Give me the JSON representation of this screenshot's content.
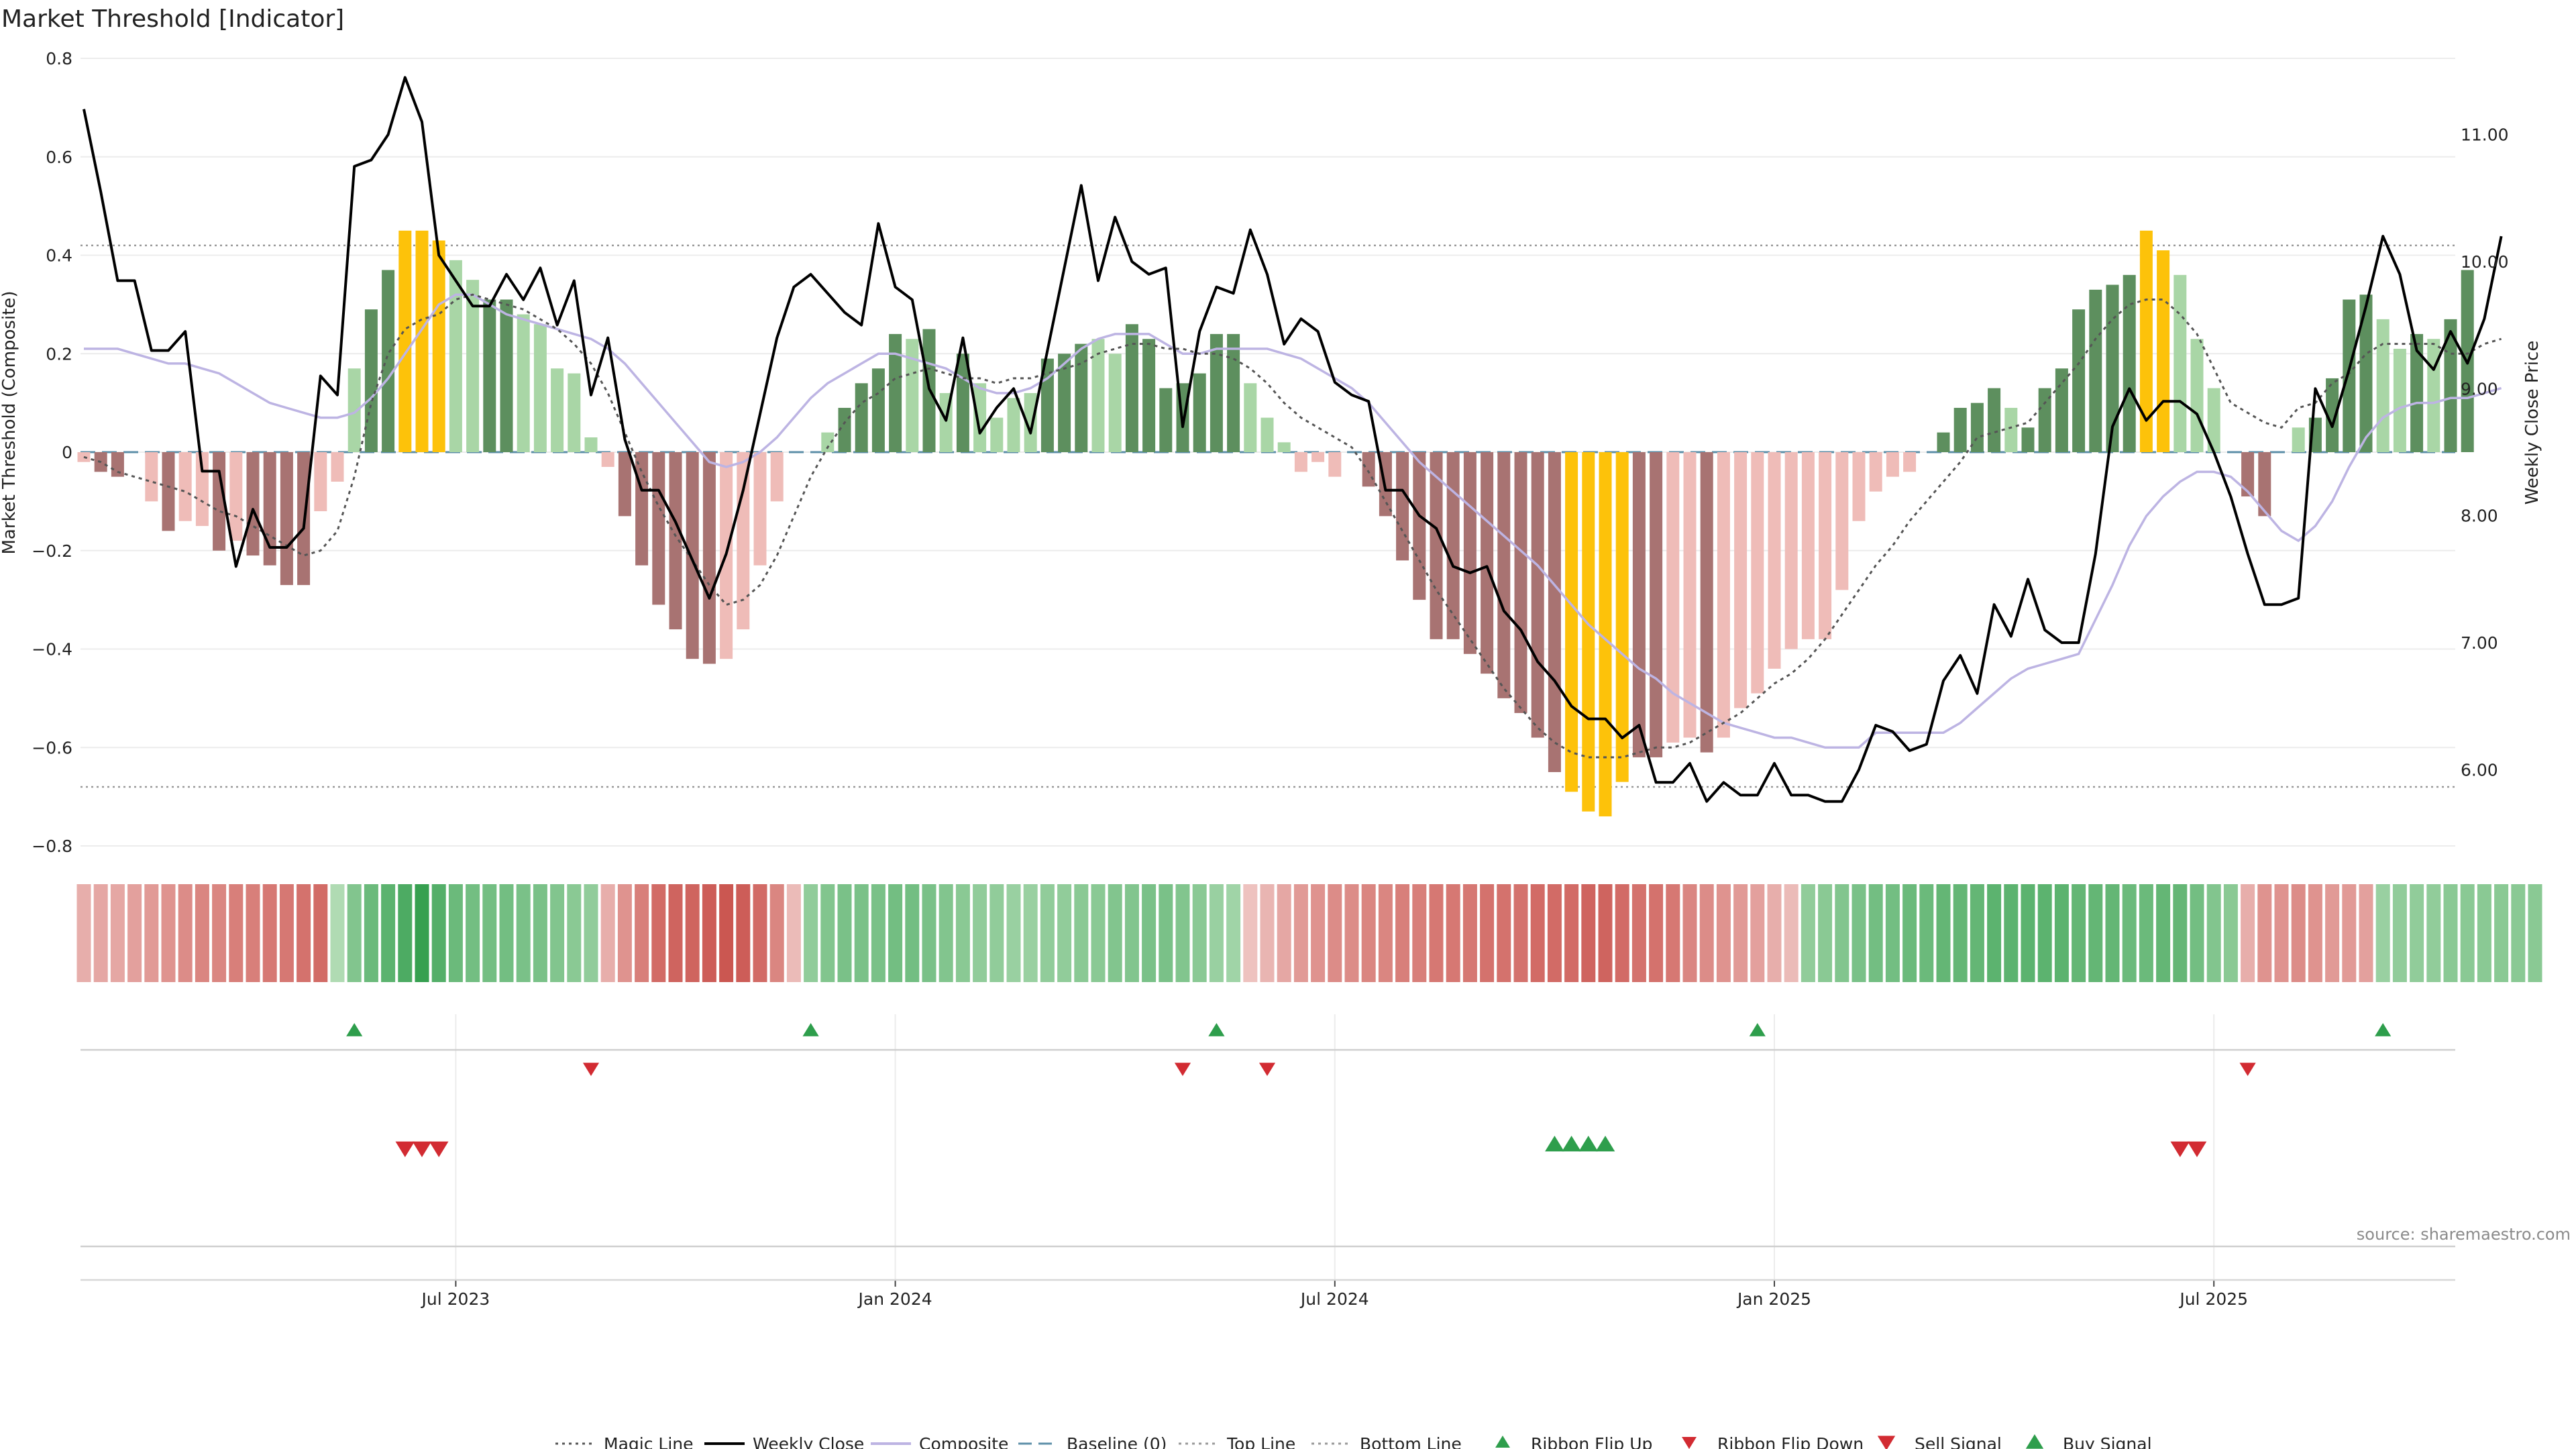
{
  "title": "Market Threshold [Indicator]",
  "source": "source: sharemaestro.com",
  "colors": {
    "dark_green": "#5d8f5e",
    "light_green": "#a9d6a6",
    "dark_red": "#a87372",
    "light_red": "#efbcb8",
    "yellow": "#fdc20a",
    "close_line": "#000000",
    "composite_line": "#bdb4e3",
    "magic_line": "#555555",
    "baseline": "#5d8fa8",
    "flip_up": "#2e9e4c",
    "flip_down": "#d22b32"
  },
  "legend": [
    {
      "label": "Magic Line",
      "kind": "dotted",
      "color": "#555555"
    },
    {
      "label": "Weekly Close",
      "kind": "solid",
      "color": "#000000"
    },
    {
      "label": "Composite",
      "kind": "lavender",
      "color": "#bdb4e3"
    },
    {
      "label": "Baseline (0)",
      "kind": "dashed",
      "color": "#5d8fa8"
    },
    {
      "label": "Top Line",
      "kind": "dotted-thin",
      "color": "#999999"
    },
    {
      "label": "Bottom Line",
      "kind": "dotted-thin",
      "color": "#999999"
    },
    {
      "label": "Ribbon Flip Up",
      "kind": "tri-up",
      "color": "#2e9e4c"
    },
    {
      "label": "Ribbon Flip Down",
      "kind": "tri-down",
      "color": "#d22b32"
    },
    {
      "label": "Sell Signal",
      "kind": "tri-down-big",
      "color": "#d22b32"
    },
    {
      "label": "Buy Signal",
      "kind": "tri-up-big",
      "color": "#2e9e4c"
    }
  ],
  "chart_data": {
    "type": "bar",
    "ylabel": "Market Threshold (Composite)",
    "y2label": "Weekly Close Price",
    "ylim": [
      -0.8,
      0.8
    ],
    "y2lim": [
      5.4,
      11.6
    ],
    "yticks": [
      "0.8",
      "0.6",
      "0.4",
      "0.2",
      "0",
      "−0.2",
      "−0.4",
      "−0.6",
      "−0.8"
    ],
    "y2ticks": [
      "11.00",
      "10.00",
      "9.00",
      "8.00",
      "7.00",
      "6.00"
    ],
    "x_ticks": [
      {
        "label": "Jul 2023",
        "index": 22
      },
      {
        "label": "Jan 2024",
        "index": 48
      },
      {
        "label": "Jul 2024",
        "index": 74
      },
      {
        "label": "Jan 2025",
        "index": 100
      },
      {
        "label": "Jul 2025",
        "index": 126
      }
    ],
    "top_line": 0.42,
    "bottom_line": -0.68,
    "composite_bars": [
      -0.02,
      -0.04,
      -0.05,
      0,
      -0.1,
      -0.16,
      -0.14,
      -0.15,
      -0.2,
      -0.18,
      -0.21,
      -0.23,
      -0.27,
      -0.27,
      -0.12,
      -0.06,
      0.17,
      0.29,
      0.37,
      0.45,
      0.45,
      0.43,
      0.39,
      0.35,
      0.31,
      0.31,
      0.28,
      0.26,
      0.17,
      0.16,
      0.03,
      -0.03,
      -0.13,
      -0.23,
      -0.31,
      -0.36,
      -0.42,
      -0.43,
      -0.42,
      -0.36,
      -0.23,
      -0.1,
      0,
      0,
      0.04,
      0.09,
      0.14,
      0.17,
      0.24,
      0.23,
      0.25,
      0.12,
      0.2,
      0.14,
      0.07,
      0.11,
      0.12,
      0.19,
      0.2,
      0.22,
      0.23,
      0.2,
      0.26,
      0.23,
      0.13,
      0.14,
      0.16,
      0.24,
      0.24,
      0.14,
      0.07,
      0.02,
      -0.04,
      -0.02,
      -0.05,
      0,
      -0.07,
      -0.13,
      -0.22,
      -0.3,
      -0.38,
      -0.38,
      -0.41,
      -0.45,
      -0.5,
      -0.53,
      -0.58,
      -0.65,
      -0.69,
      -0.73,
      -0.74,
      -0.67,
      -0.62,
      -0.62,
      -0.59,
      -0.58,
      -0.61,
      -0.58,
      -0.52,
      -0.49,
      -0.44,
      -0.4,
      -0.38,
      -0.38,
      -0.28,
      -0.14,
      -0.08,
      -0.05,
      -0.04,
      0,
      0.04,
      0.09,
      0.1,
      0.13,
      0.09,
      0.05,
      0.13,
      0.17,
      0.29,
      0.33,
      0.34,
      0.36,
      0.45,
      0.41,
      0.36,
      0.23,
      0.13,
      0,
      -0.09,
      -0.13,
      0,
      0.05,
      0.07,
      0.15,
      0.31,
      0.32,
      0.27,
      0.21,
      0.24,
      0.23,
      0.27,
      0.37
    ],
    "bar_colors": [
      "lr",
      "dr",
      "dr",
      "lr",
      "lr",
      "dr",
      "lr",
      "lr",
      "dr",
      "lr",
      "dr",
      "dr",
      "dr",
      "dr",
      "lr",
      "lr",
      "lg",
      "dg",
      "dg",
      "y",
      "y",
      "y",
      "lg",
      "lg",
      "dg",
      "dg",
      "lg",
      "lg",
      "lg",
      "lg",
      "lg",
      "lr",
      "dr",
      "dr",
      "dr",
      "dr",
      "dr",
      "dr",
      "lr",
      "lr",
      "lr",
      "lr",
      "lr",
      "lg",
      "lg",
      "dg",
      "dg",
      "dg",
      "dg",
      "lg",
      "dg",
      "lg",
      "dg",
      "lg",
      "lg",
      "lg",
      "lg",
      "dg",
      "dg",
      "dg",
      "lg",
      "lg",
      "dg",
      "dg",
      "dg",
      "dg",
      "dg",
      "dg",
      "dg",
      "lg",
      "lg",
      "lg",
      "lr",
      "lr",
      "lr",
      "lr",
      "dr",
      "dr",
      "dr",
      "dr",
      "dr",
      "dr",
      "dr",
      "dr",
      "dr",
      "dr",
      "dr",
      "dr",
      "y",
      "y",
      "y",
      "y",
      "dr",
      "dr",
      "lr",
      "lr",
      "dr",
      "lr",
      "lr",
      "lr",
      "lr",
      "lr",
      "lr",
      "lr",
      "lr",
      "lr",
      "lr",
      "lr",
      "lr",
      "lg",
      "dg",
      "dg",
      "dg",
      "dg",
      "lg",
      "dg",
      "dg",
      "dg",
      "dg",
      "dg",
      "dg",
      "dg",
      "y",
      "y",
      "lg",
      "lg",
      "lg",
      "lg",
      "dr",
      "dr",
      "lg",
      "lg",
      "dg",
      "dg",
      "dg",
      "dg",
      "lg",
      "lg",
      "dg",
      "lg",
      "dg",
      "dg"
    ],
    "weekly_close": [
      11.2,
      10.55,
      9.85,
      9.85,
      9.3,
      9.3,
      9.45,
      8.35,
      8.35,
      7.6,
      8.05,
      7.75,
      7.75,
      7.9,
      9.1,
      8.95,
      10.75,
      10.8,
      11.0,
      11.45,
      11.1,
      10.05,
      9.85,
      9.65,
      9.65,
      9.9,
      9.7,
      9.95,
      9.5,
      9.85,
      8.95,
      9.4,
      8.6,
      8.2,
      8.2,
      7.95,
      7.65,
      7.35,
      7.7,
      8.2,
      8.8,
      9.4,
      9.8,
      9.9,
      9.75,
      9.6,
      9.5,
      10.3,
      9.8,
      9.7,
      9.0,
      8.75,
      9.4,
      8.65,
      8.85,
      9.0,
      8.65,
      9.3,
      9.95,
      10.6,
      9.85,
      10.35,
      10.0,
      9.9,
      9.95,
      8.7,
      9.45,
      9.8,
      9.75,
      10.25,
      9.9,
      9.35,
      9.55,
      9.45,
      9.05,
      8.95,
      8.9,
      8.2,
      8.2,
      8.0,
      7.9,
      7.6,
      7.55,
      7.6,
      7.25,
      7.1,
      6.85,
      6.7,
      6.5,
      6.4,
      6.4,
      6.25,
      6.35,
      5.9,
      5.9,
      6.05,
      5.75,
      5.9,
      5.8,
      5.8,
      6.05,
      5.8,
      5.8,
      5.75,
      5.75,
      6.0,
      6.35,
      6.3,
      6.15,
      6.2,
      6.7,
      6.9,
      6.6,
      7.3,
      7.05,
      7.5,
      7.1,
      7.0,
      7.0,
      7.7,
      8.7,
      9.0,
      8.75,
      8.9,
      8.9,
      8.8,
      8.5,
      8.15,
      7.7,
      7.3,
      7.3,
      7.35,
      9.0,
      8.7,
      9.15,
      9.65,
      10.2,
      9.9,
      9.3,
      9.15,
      9.45,
      9.2,
      9.55,
      10.2
    ],
    "composite_line": [
      0.21,
      0.21,
      0.21,
      0.2,
      0.19,
      0.18,
      0.18,
      0.17,
      0.16,
      0.14,
      0.12,
      0.1,
      0.09,
      0.08,
      0.07,
      0.07,
      0.08,
      0.11,
      0.15,
      0.2,
      0.25,
      0.3,
      0.32,
      0.32,
      0.3,
      0.28,
      0.27,
      0.26,
      0.25,
      0.24,
      0.23,
      0.21,
      0.18,
      0.14,
      0.1,
      0.06,
      0.02,
      -0.02,
      -0.03,
      -0.02,
      0.0,
      0.03,
      0.07,
      0.11,
      0.14,
      0.16,
      0.18,
      0.2,
      0.2,
      0.19,
      0.18,
      0.17,
      0.15,
      0.13,
      0.12,
      0.12,
      0.13,
      0.15,
      0.18,
      0.21,
      0.23,
      0.24,
      0.24,
      0.24,
      0.22,
      0.2,
      0.2,
      0.21,
      0.21,
      0.21,
      0.21,
      0.2,
      0.19,
      0.17,
      0.15,
      0.13,
      0.1,
      0.06,
      0.02,
      -0.02,
      -0.05,
      -0.08,
      -0.11,
      -0.14,
      -0.17,
      -0.2,
      -0.23,
      -0.27,
      -0.31,
      -0.35,
      -0.38,
      -0.41,
      -0.44,
      -0.46,
      -0.49,
      -0.51,
      -0.53,
      -0.55,
      -0.56,
      -0.57,
      -0.58,
      -0.58,
      -0.59,
      -0.6,
      -0.6,
      -0.6,
      -0.57,
      -0.57,
      -0.57,
      -0.57,
      -0.57,
      -0.55,
      -0.52,
      -0.49,
      -0.46,
      -0.44,
      -0.43,
      -0.42,
      -0.41,
      -0.34,
      -0.27,
      -0.19,
      -0.13,
      -0.09,
      -0.06,
      -0.04,
      -0.04,
      -0.05,
      -0.08,
      -0.12,
      -0.16,
      -0.18,
      -0.15,
      -0.1,
      -0.03,
      0.03,
      0.07,
      0.09,
      0.1,
      0.1,
      0.11,
      0.11,
      0.12,
      0.13
    ],
    "magic_line": [
      -0.01,
      -0.02,
      -0.04,
      -0.05,
      -0.06,
      -0.07,
      -0.08,
      -0.1,
      -0.12,
      -0.13,
      -0.15,
      -0.17,
      -0.19,
      -0.21,
      -0.2,
      -0.16,
      -0.05,
      0.1,
      0.2,
      0.25,
      0.27,
      0.28,
      0.31,
      0.32,
      0.31,
      0.3,
      0.29,
      0.27,
      0.25,
      0.22,
      0.18,
      0.12,
      0.04,
      -0.04,
      -0.11,
      -0.17,
      -0.22,
      -0.27,
      -0.31,
      -0.3,
      -0.27,
      -0.21,
      -0.13,
      -0.05,
      0.01,
      0.06,
      0.1,
      0.12,
      0.15,
      0.16,
      0.17,
      0.16,
      0.15,
      0.15,
      0.14,
      0.15,
      0.15,
      0.16,
      0.17,
      0.18,
      0.2,
      0.21,
      0.22,
      0.22,
      0.21,
      0.21,
      0.2,
      0.2,
      0.19,
      0.17,
      0.14,
      0.1,
      0.07,
      0.05,
      0.03,
      0.01,
      -0.04,
      -0.1,
      -0.16,
      -0.22,
      -0.28,
      -0.33,
      -0.38,
      -0.43,
      -0.48,
      -0.52,
      -0.56,
      -0.59,
      -0.61,
      -0.62,
      -0.62,
      -0.62,
      -0.61,
      -0.6,
      -0.6,
      -0.59,
      -0.57,
      -0.55,
      -0.53,
      -0.5,
      -0.47,
      -0.45,
      -0.42,
      -0.38,
      -0.33,
      -0.28,
      -0.23,
      -0.19,
      -0.14,
      -0.1,
      -0.06,
      -0.02,
      0.03,
      0.04,
      0.05,
      0.06,
      0.1,
      0.14,
      0.18,
      0.23,
      0.27,
      0.3,
      0.31,
      0.31,
      0.28,
      0.24,
      0.17,
      0.1,
      0.08,
      0.06,
      0.05,
      0.09,
      0.1,
      0.14,
      0.16,
      0.2,
      0.22,
      0.22,
      0.22,
      0.22,
      0.2,
      0.2,
      0.22,
      0.23
    ],
    "ribbon": [
      0.3,
      0.35,
      0.35,
      0.4,
      0.45,
      0.5,
      0.55,
      0.6,
      0.6,
      0.65,
      0.65,
      0.7,
      0.7,
      0.75,
      0.8,
      -0.2,
      -0.5,
      -0.65,
      -0.75,
      -0.85,
      -1.0,
      -0.8,
      -0.65,
      -0.6,
      -0.6,
      -0.6,
      -0.55,
      -0.55,
      -0.5,
      -0.45,
      -0.4,
      0.3,
      0.5,
      0.65,
      0.8,
      0.85,
      0.85,
      0.9,
      0.95,
      0.9,
      0.8,
      0.6,
      0.2,
      -0.4,
      -0.5,
      -0.55,
      -0.55,
      -0.55,
      -0.6,
      -0.6,
      -0.55,
      -0.5,
      -0.45,
      -0.4,
      -0.4,
      -0.35,
      -0.35,
      -0.4,
      -0.4,
      -0.45,
      -0.45,
      -0.5,
      -0.5,
      -0.55,
      -0.55,
      -0.5,
      -0.45,
      -0.35,
      -0.3,
      0.15,
      0.25,
      0.35,
      0.45,
      0.5,
      0.55,
      0.55,
      0.6,
      0.6,
      0.65,
      0.65,
      0.7,
      0.7,
      0.7,
      0.75,
      0.75,
      0.75,
      0.8,
      0.8,
      0.8,
      0.85,
      0.85,
      0.8,
      0.75,
      0.75,
      0.7,
      0.6,
      0.55,
      0.5,
      0.45,
      0.4,
      0.3,
      0.2,
      -0.4,
      -0.45,
      -0.5,
      -0.55,
      -0.6,
      -0.6,
      -0.65,
      -0.65,
      -0.7,
      -0.7,
      -0.7,
      -0.75,
      -0.75,
      -0.75,
      -0.75,
      -0.75,
      -0.7,
      -0.7,
      -0.7,
      -0.65,
      -0.65,
      -0.7,
      -0.7,
      -0.6,
      -0.5,
      -0.45,
      0.3,
      0.5,
      0.5,
      0.55,
      0.5,
      0.45,
      0.45,
      0.4,
      -0.35,
      -0.4,
      -0.4,
      -0.4,
      -0.45,
      -0.45,
      -0.45,
      -0.45,
      -0.45,
      -0.45
    ],
    "ribbon_flip_up_indices": [
      16,
      43,
      67,
      99,
      136
    ],
    "ribbon_flip_down_indices": [
      30,
      65,
      70,
      128
    ],
    "sell_signal_indices": [
      19,
      20,
      21,
      124,
      125
    ],
    "buy_signal_indices": [
      87,
      88,
      89,
      90
    ]
  }
}
